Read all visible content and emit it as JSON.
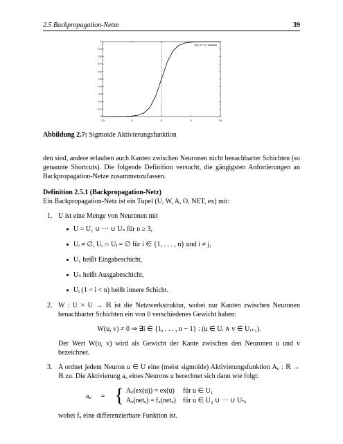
{
  "header": {
    "section": "2.5   Backpropagation-Netze",
    "page": "39"
  },
  "chart_data": {
    "type": "line",
    "x": [
      -10,
      -9,
      -8,
      -7,
      -6,
      -5,
      -4,
      -3,
      -2,
      -1,
      0,
      1,
      2,
      3,
      4,
      5,
      6,
      7,
      8,
      9,
      10
    ],
    "series": [
      {
        "name": "1/(1+e^-x)",
        "color": "#000000",
        "values": [
          0.0,
          0.0,
          0.0,
          0.001,
          0.002,
          0.007,
          0.018,
          0.047,
          0.119,
          0.269,
          0.5,
          0.731,
          0.881,
          0.953,
          0.982,
          0.993,
          0.998,
          0.999,
          1.0,
          1.0,
          1.0
        ]
      }
    ],
    "xlim": [
      -10,
      10
    ],
    "xticks": [
      -10,
      -5,
      0,
      5,
      10
    ],
    "ylim": [
      0,
      1
    ],
    "yticks": [
      0,
      0.1,
      0.2,
      0.3,
      0.4,
      0.5,
      0.6,
      0.7,
      0.8,
      0.9,
      1
    ],
    "vline": 0,
    "legend": "upper right"
  },
  "caption": {
    "label": "Abbildung 2.7:",
    "text": "Sigmoide Aktivierungsfunktion"
  },
  "paragraph": "den sind, andere erlauben auch Kanten zwischen Neuronen nicht benachbarter Schichten (so genannte Shortcuts). Die folgende Definition versucht, die gängigsten Anforderungen an Backpropagation-Netze zusammenzufassen.",
  "definition": {
    "title": "Definition 2.5.1 (Backpropagation-Netz)",
    "intro": "Ein Backpropagation-Netz ist ein Tupel (U, W, A, O, NET, ex) mit:",
    "items": [
      {
        "number": "1.",
        "text": "U ist eine Menge von Neuronen mit",
        "bullets": [
          "U = U₁ ∪ ··· ∪ Uₙ für n ≥ 3,",
          "Uᵢ ≠ ∅, Uᵢ ∩ Uⱼ = ∅ für i ∈ {1, . . . , n} und i ≠ j,",
          "U₁ heißt Eingabeschicht,",
          "Uₙ heißt Ausgabeschicht,",
          "Uᵢ (1 < i < n) heißt innere Schicht."
        ]
      },
      {
        "number": "2.",
        "text": "W : U × U → ℝ ist die Netzwerkstruktur, wobei nur Kanten zwischen Neuronen benachbarter Schichten ein von 0 verschiedenes Gewicht haben:",
        "formula": "W(u, v) ≠ 0 ⇒ ∃i ∈ {1, . . . , n − 1} : (u ∈ Uᵢ ∧ v ∈ Uᵢ₊₁).",
        "after": "Der Wert W(u, v) wird als Gewicht der Kante zwischen den Neuronen u und v bezeichnet."
      },
      {
        "number": "3.",
        "text": "A ordnet jedem Neuron u ∈ U eine (meist sigmoide) Aktivierungsfunktion Aᵤ : ℝ → ℝ zu. Die Aktivierung aᵤ eines Neurons u berechnet sich dann wie folgt:",
        "formula_lhs": "aᵤ",
        "formula_eq": "=",
        "cases": [
          [
            "Aᵤ(ex(u)) = ex(u)",
            "für u ∈ U₁"
          ],
          [
            "Aᵤ(netᵤ) = fᵤ(netᵤ)",
            "für u ∈ U₂ ∪ ··· ∪ Uₙ,"
          ]
        ],
        "after": "wobei fᵤ eine differenzierbare Funktion ist."
      }
    ]
  }
}
